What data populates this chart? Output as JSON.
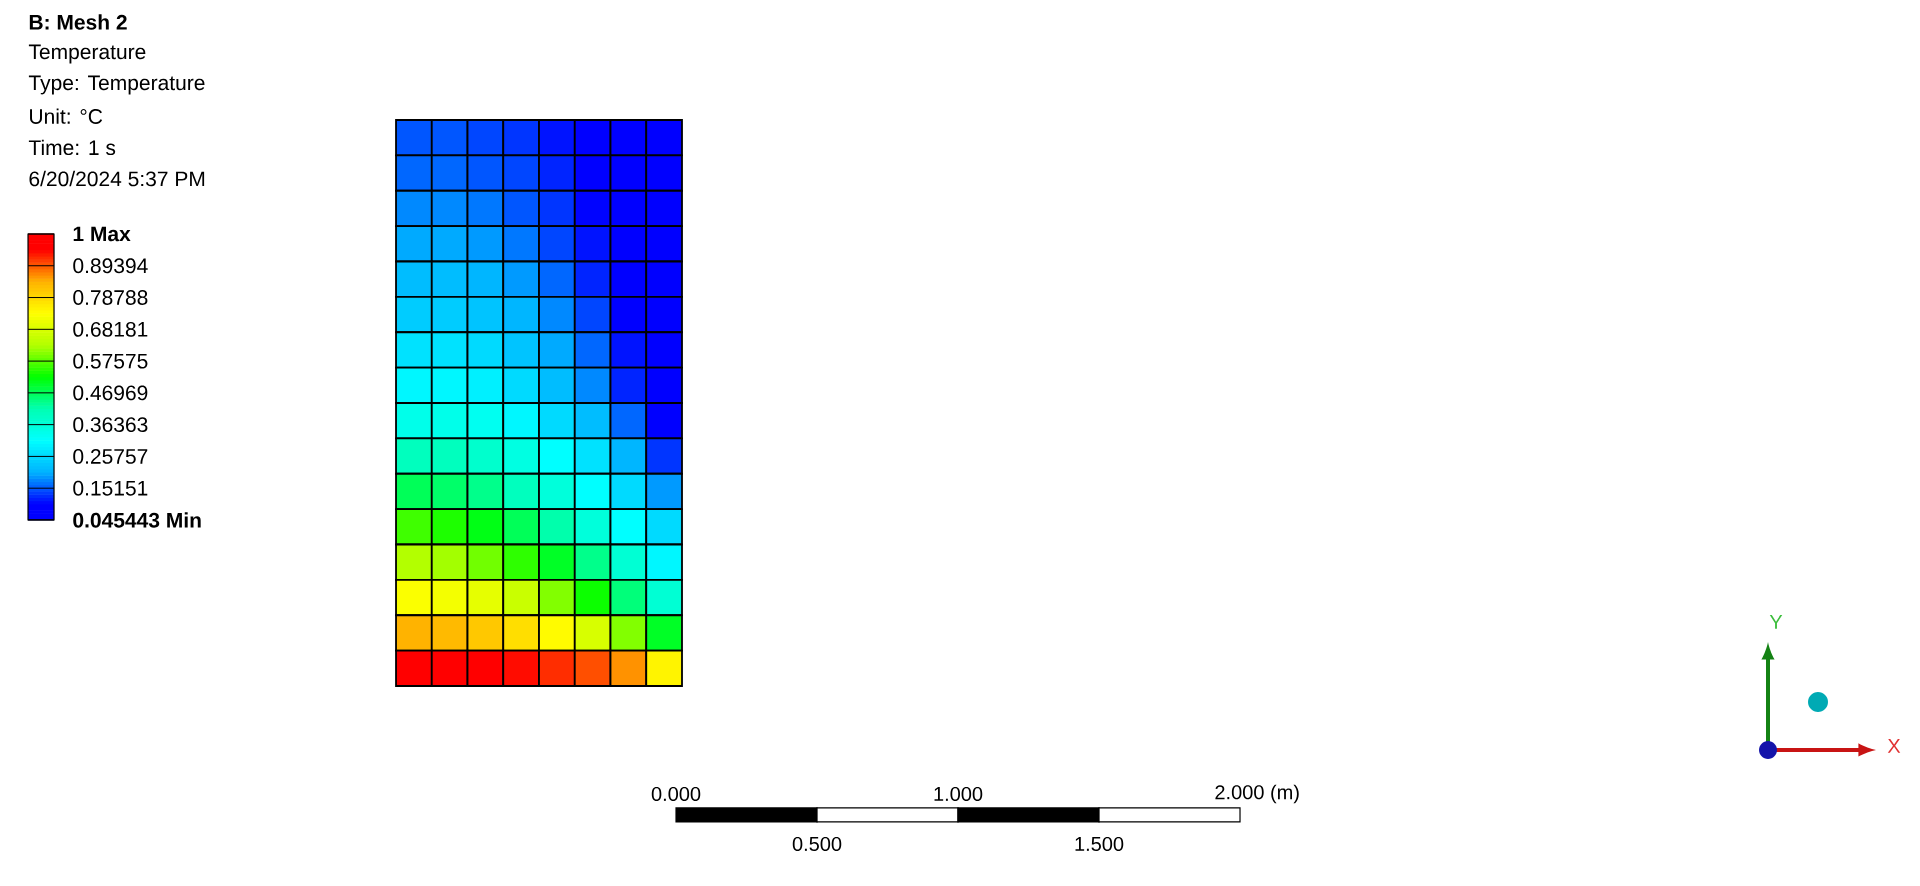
{
  "chart_data": {
    "type": "heatmap",
    "title": "B: Mesh 2",
    "subtitle": "Temperature",
    "annotations": [
      "Type: Temperature",
      "Unit: °C",
      "Time: 1 s",
      "6/20/2024 5:37 PM",
      "0.000",
      "0.500",
      "1.000",
      "1.500",
      "2.000 (m)",
      "Y",
      "X"
    ],
    "categories": [
      null,
      null,
      null,
      null,
      null,
      null,
      null,
      null
    ],
    "y_categories": [
      null,
      null,
      null,
      null,
      null,
      null,
      null,
      null,
      null,
      null,
      null,
      null,
      null,
      null,
      null,
      null
    ],
    "cells": [
      [
        0.15,
        0.15,
        0.14,
        0.13,
        0.11,
        0.08,
        0.06,
        0.05
      ],
      [
        0.16,
        0.16,
        0.15,
        0.14,
        0.12,
        0.09,
        0.06,
        0.05
      ],
      [
        0.18,
        0.18,
        0.17,
        0.15,
        0.13,
        0.1,
        0.07,
        0.05
      ],
      [
        0.2,
        0.2,
        0.19,
        0.17,
        0.14,
        0.11,
        0.08,
        0.05
      ],
      [
        0.22,
        0.22,
        0.21,
        0.19,
        0.16,
        0.12,
        0.08,
        0.05
      ],
      [
        0.24,
        0.24,
        0.23,
        0.21,
        0.18,
        0.14,
        0.09,
        0.05
      ],
      [
        0.27,
        0.27,
        0.26,
        0.23,
        0.2,
        0.16,
        0.11,
        0.06
      ],
      [
        0.3,
        0.3,
        0.29,
        0.26,
        0.22,
        0.18,
        0.12,
        0.07
      ],
      [
        0.34,
        0.34,
        0.33,
        0.3,
        0.26,
        0.22,
        0.16,
        0.09
      ],
      [
        0.4,
        0.4,
        0.38,
        0.35,
        0.31,
        0.27,
        0.21,
        0.13
      ],
      [
        0.47,
        0.46,
        0.44,
        0.4,
        0.36,
        0.31,
        0.26,
        0.19
      ],
      [
        0.56,
        0.54,
        0.51,
        0.47,
        0.42,
        0.36,
        0.31,
        0.26
      ],
      [
        0.63,
        0.62,
        0.59,
        0.55,
        0.5,
        0.44,
        0.37,
        0.3
      ],
      [
        0.73,
        0.72,
        0.7,
        0.66,
        0.6,
        0.53,
        0.45,
        0.37
      ],
      [
        0.84,
        0.83,
        0.81,
        0.78,
        0.74,
        0.68,
        0.6,
        0.5
      ],
      [
        0.96,
        0.96,
        0.95,
        0.94,
        0.92,
        0.9,
        0.86,
        0.75
      ]
    ],
    "clim": [
      0.045443,
      1
    ],
    "cticks": [
      {
        "value": 0.045443,
        "label": "0.045443 Min"
      },
      0.15151,
      0.25757,
      0.36363,
      0.46969,
      0.57575,
      0.68181,
      0.78788,
      0.89394,
      {
        "value": 1,
        "label": "1 Max"
      }
    ]
  }
}
